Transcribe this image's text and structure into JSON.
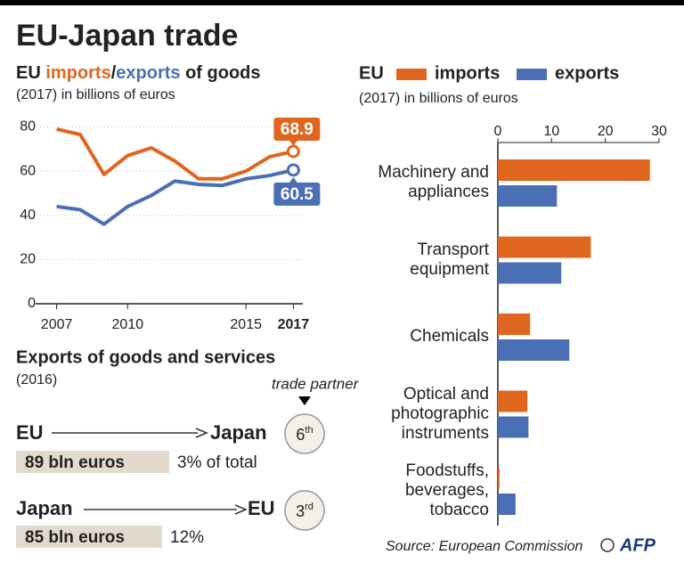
{
  "title": "EU-Japan trade",
  "chart_data": [
    {
      "type": "line",
      "title_prefix": "EU",
      "title_separator": "/",
      "title_suffix": "of goods",
      "subtitle": "(2017) in billions of euros",
      "x": [
        2007,
        2008,
        2009,
        2010,
        2011,
        2012,
        2013,
        2014,
        2015,
        2016,
        2017
      ],
      "series": [
        {
          "name": "imports",
          "color": "#e0661f",
          "values": [
            79,
            76.5,
            58.5,
            67,
            70.5,
            64.5,
            56.5,
            56.5,
            60,
            66.5,
            68.9
          ]
        },
        {
          "name": "exports",
          "color": "#4a6fb5",
          "values": [
            44,
            42.5,
            36,
            44,
            49,
            55.5,
            54,
            53.5,
            56.5,
            58,
            60.5
          ]
        }
      ],
      "xlim": [
        2006.3,
        2017.4
      ],
      "xticks": [
        2007,
        2010,
        2015,
        2017
      ],
      "ylim": [
        0,
        83
      ],
      "yticks": [
        0,
        20,
        40,
        60,
        80
      ],
      "grid": true
    },
    {
      "type": "hbar",
      "legend_title": "EU",
      "subtitle": "(2017) in billions of euros",
      "categories": [
        "Machinery and\nappliances",
        "Transport\nequipment",
        "Chemicals",
        "Optical and\nphotographic\ninstruments",
        "Foodstuffs,\nbeverages,\ntobacco"
      ],
      "series": [
        {
          "name": "imports",
          "color": "#e0661f",
          "values": [
            28.3,
            17.3,
            6,
            5.5,
            0.3
          ]
        },
        {
          "name": "exports",
          "color": "#4a6fb5",
          "values": [
            11,
            11.8,
            13.3,
            5.7,
            3.3
          ]
        }
      ],
      "xlim": [
        0,
        30
      ],
      "xticks": [
        0,
        10,
        20,
        30
      ]
    }
  ],
  "exports_section": {
    "title": "Exports of goods and services",
    "subtitle": "(2016)",
    "partner_label": "trade partner",
    "rows": [
      {
        "from": "EU",
        "to": "Japan",
        "rank": "6",
        "rank_suffix": "th",
        "amount": "89 bln euros",
        "share": "3% of total"
      },
      {
        "from": "Japan",
        "to": "EU",
        "rank": "3",
        "rank_suffix": "rd",
        "amount": "85 bln euros",
        "share": "12%"
      }
    ]
  },
  "source": "Source: European Commission",
  "credit": "AFP"
}
